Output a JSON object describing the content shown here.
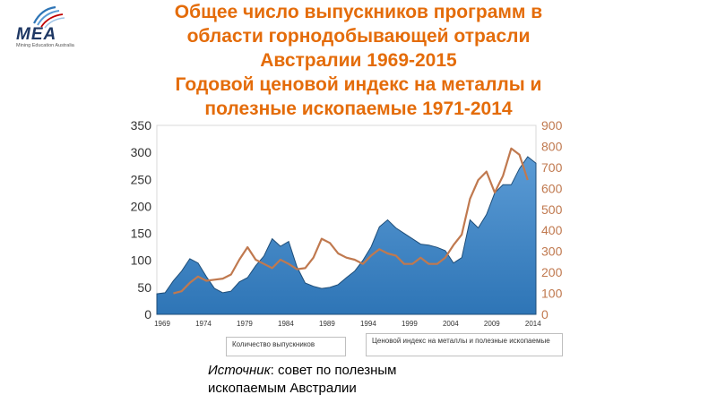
{
  "logo": {
    "word": "MEA",
    "tagline": "Mining Education Australia"
  },
  "title": {
    "line1": "Общее число выпускников программ в",
    "line2": "области горнодобывающей отрасли",
    "line3": "Австралии 1969-2015",
    "line4": "Годовой ценовой индекс на металлы и",
    "line5": "полезные ископаемые 1971-2014"
  },
  "source": {
    "label": "Источник",
    "text": ": совет по полезным ископаемым Австралии"
  },
  "colors": {
    "area": "#5b9bd5",
    "area_dark": "#2e75b6",
    "line": "#c0794f",
    "title": "#e46c0a",
    "right_axis": "#c0794f"
  },
  "chart_data": {
    "type": "area",
    "x_ticks": [
      "1969",
      "1974",
      "1979",
      "1984",
      "1989",
      "1994",
      "1999",
      "2004",
      "2009",
      "2014"
    ],
    "y_left": {
      "range": [
        0,
        350
      ],
      "ticks": [
        "0",
        "50",
        "100",
        "150",
        "200",
        "250",
        "300",
        "350"
      ]
    },
    "y_right": {
      "range": [
        0,
        900
      ],
      "ticks": [
        "0",
        "100",
        "200",
        "300",
        "400",
        "500",
        "600",
        "700",
        "800",
        "900"
      ]
    },
    "series": [
      {
        "name": "Количество выпускников",
        "type": "area",
        "axis": "left",
        "x": [
          1969,
          1970,
          1971,
          1972,
          1973,
          1974,
          1975,
          1976,
          1977,
          1978,
          1979,
          1980,
          1981,
          1982,
          1983,
          1984,
          1985,
          1986,
          1987,
          1988,
          1989,
          1990,
          1991,
          1992,
          1993,
          1994,
          1995,
          1996,
          1997,
          1998,
          1999,
          2000,
          2001,
          2002,
          2003,
          2004,
          2005,
          2006,
          2007,
          2008,
          2009,
          2010,
          2011,
          2012,
          2013,
          2014,
          2015
        ],
        "values": [
          38,
          40,
          62,
          80,
          103,
          95,
          70,
          48,
          40,
          43,
          60,
          68,
          90,
          108,
          140,
          126,
          135,
          88,
          58,
          52,
          48,
          50,
          55,
          68,
          80,
          100,
          125,
          162,
          175,
          160,
          150,
          140,
          130,
          128,
          124,
          118,
          95,
          105,
          175,
          160,
          185,
          225,
          240,
          240,
          270,
          292,
          280
        ]
      },
      {
        "name": "Ценовой индекс на металлы и полезные ископаемые",
        "type": "line",
        "axis": "right",
        "x": [
          1971,
          1972,
          1973,
          1974,
          1975,
          1976,
          1977,
          1978,
          1979,
          1980,
          1981,
          1982,
          1983,
          1984,
          1985,
          1986,
          1987,
          1988,
          1989,
          1990,
          1991,
          1992,
          1993,
          1994,
          1995,
          1996,
          1997,
          1998,
          1999,
          2000,
          2001,
          2002,
          2003,
          2004,
          2005,
          2006,
          2007,
          2008,
          2009,
          2010,
          2011,
          2012,
          2013,
          2014
        ],
        "values": [
          100,
          110,
          150,
          180,
          160,
          165,
          170,
          190,
          260,
          320,
          260,
          240,
          220,
          260,
          240,
          215,
          220,
          270,
          360,
          340,
          290,
          270,
          260,
          240,
          280,
          310,
          290,
          280,
          240,
          240,
          270,
          240,
          240,
          270,
          330,
          380,
          550,
          640,
          680,
          580,
          660,
          790,
          760,
          640
        ]
      }
    ]
  }
}
